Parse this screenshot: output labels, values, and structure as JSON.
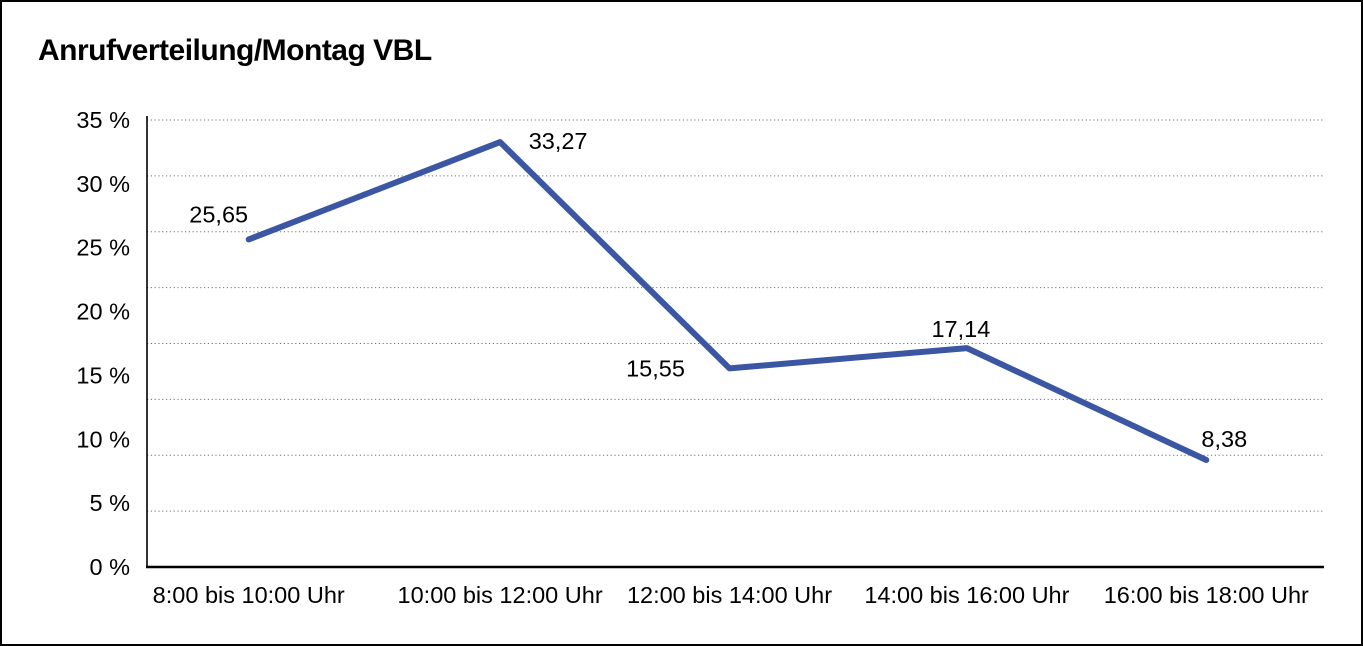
{
  "chart_data": {
    "type": "line",
    "title": "Anrufverteilung/Montag VBL",
    "categories": [
      "8:00 bis 10:00 Uhr",
      "10:00 bis 12:00 Uhr",
      "12:00 bis 14:00 Uhr",
      "14:00 bis 16:00 Uhr",
      "16:00 bis 18:00 Uhr"
    ],
    "series": [
      {
        "name": "Anrufverteilung Montag VBL",
        "values": [
          25.65,
          33.27,
          15.55,
          17.14,
          8.38
        ]
      }
    ],
    "point_labels": [
      "25,65",
      "33,27",
      "15,55",
      "17,14",
      "8,38"
    ],
    "y_ticks": [
      {
        "value": 0,
        "label": "0 %"
      },
      {
        "value": 5,
        "label": "5 %"
      },
      {
        "value": 10,
        "label": "10 %"
      },
      {
        "value": 15,
        "label": "15 %"
      },
      {
        "value": 20,
        "label": "20 %"
      },
      {
        "value": 25,
        "label": "25 %"
      },
      {
        "value": 30,
        "label": "30 %"
      },
      {
        "value": 35,
        "label": "35 %"
      }
    ],
    "ylim": [
      0,
      35
    ],
    "xlabel": "",
    "ylabel": "",
    "legend": "none",
    "grid": {
      "horizontal": "dotted",
      "vertical": "none",
      "h_divisions": 8
    },
    "colors": {
      "line": "#3B57A4",
      "grid": "#707070",
      "axis": "#000000",
      "text": "#000000",
      "background": "#FFFFFF",
      "border": "#000000"
    }
  }
}
